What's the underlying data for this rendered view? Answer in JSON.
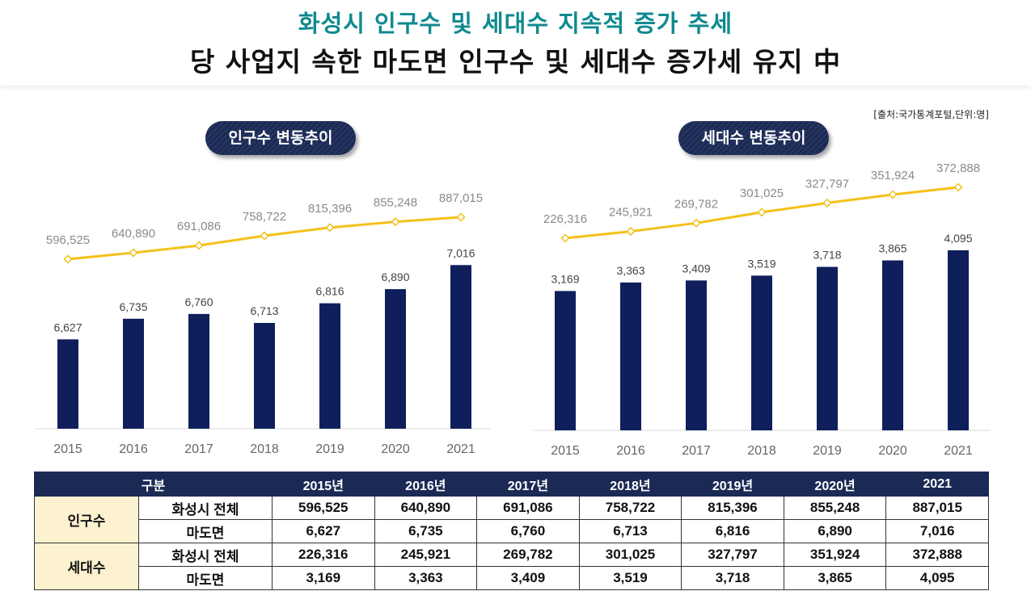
{
  "header": {
    "title_line1": "화성시 인구수 및 세대수 지속적 증가 추세",
    "title_line2": "당 사업지 속한 마도면 인구수 및 세대수 증가세 유지 中"
  },
  "source_note": "[출처:국가통계포털,단위:명]",
  "colors": {
    "bar": "#0f1f5c",
    "line": "#f5c018",
    "header_bg": "#1b2a55",
    "group_bg": "#fdf2cf",
    "title_accent": "#0f8a8f"
  },
  "chart_data": [
    {
      "type": "bar",
      "title": "인구수 변동추이",
      "categories": [
        "2015",
        "2016",
        "2017",
        "2018",
        "2019",
        "2020",
        "2021"
      ],
      "series": [
        {
          "name": "화성시 전체",
          "kind": "line",
          "values": [
            596525,
            640890,
            691086,
            758722,
            815396,
            855248,
            887015
          ],
          "labels": [
            "596,525",
            "640,890",
            "691,086",
            "758,722",
            "815,396",
            "855,248",
            "887,015"
          ]
        },
        {
          "name": "마도면",
          "kind": "bar",
          "values": [
            6627,
            6735,
            6760,
            6713,
            6816,
            6890,
            7016
          ],
          "labels": [
            "6,627",
            "6,735",
            "6,760",
            "6,713",
            "6,816",
            "6,890",
            "7,016"
          ]
        }
      ]
    },
    {
      "type": "bar",
      "title": "세대수 변동추이",
      "categories": [
        "2015",
        "2016",
        "2017",
        "2018",
        "2019",
        "2020",
        "2021"
      ],
      "series": [
        {
          "name": "화성시 전체",
          "kind": "line",
          "values": [
            226316,
            245921,
            269782,
            301025,
            327797,
            351924,
            372888
          ],
          "labels": [
            "226,316",
            "245,921",
            "269,782",
            "301,025",
            "327,797",
            "351,924",
            "372,888"
          ]
        },
        {
          "name": "마도면",
          "kind": "bar",
          "values": [
            3169,
            3363,
            3409,
            3519,
            3718,
            3865,
            4095
          ],
          "labels": [
            "3,169",
            "3,363",
            "3,409",
            "3,519",
            "3,718",
            "3,865",
            "4,095"
          ]
        }
      ]
    }
  ],
  "table": {
    "corner": "구분",
    "headers": [
      "2015년",
      "2016년",
      "2017년",
      "2018년",
      "2019년",
      "2020년",
      "2021"
    ],
    "groups": [
      {
        "label": "인구수",
        "rows": [
          {
            "label": "화성시 전체",
            "values": [
              "596,525",
              "640,890",
              "691,086",
              "758,722",
              "815,396",
              "855,248",
              "887,015"
            ]
          },
          {
            "label": "마도면",
            "values": [
              "6,627",
              "6,735",
              "6,760",
              "6,713",
              "6,816",
              "6,890",
              "7,016"
            ]
          }
        ]
      },
      {
        "label": "세대수",
        "rows": [
          {
            "label": "화성시 전체",
            "values": [
              "226,316",
              "245,921",
              "269,782",
              "301,025",
              "327,797",
              "351,924",
              "372,888"
            ]
          },
          {
            "label": "마도면",
            "values": [
              "3,169",
              "3,363",
              "3,409",
              "3,519",
              "3,718",
              "3,865",
              "4,095"
            ]
          }
        ]
      }
    ]
  }
}
